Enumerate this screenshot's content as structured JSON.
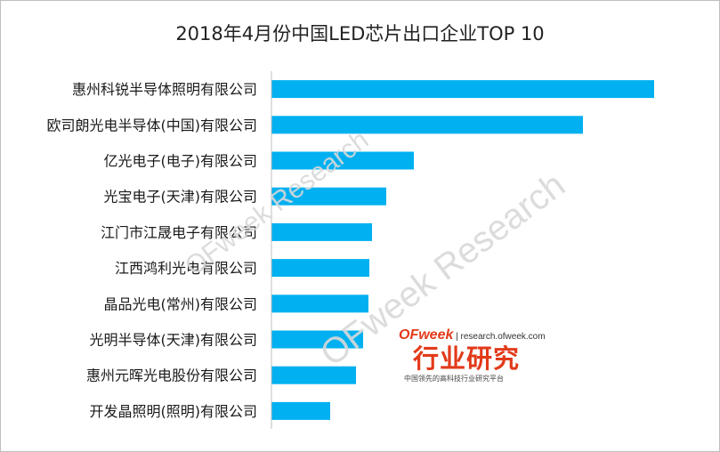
{
  "chart_data": {
    "type": "bar",
    "orientation": "horizontal",
    "title": "2018年4月份中国LED芯片出口企业TOP 10",
    "categories": [
      "惠州科锐半导体照明有限公司",
      "欧司朗光电半导体(中国)有限公司",
      "亿光电子(电子)有限公司",
      "光宝电子(天津)有限公司",
      "江门市江晟电子有限公司",
      "江西鸿利光电有限公司",
      "晶品光电(常州)有限公司",
      "光明半导体(天津)有限公司",
      "惠州元晖光电股份有限公司",
      "开发晶照明(照明)有限公司"
    ],
    "values": [
      430,
      350,
      160,
      129,
      113,
      110,
      109,
      103,
      95,
      66
    ],
    "xlim": [
      0,
      500
    ],
    "grid": false,
    "bar_color": "#00b0f0"
  },
  "watermark": {
    "text1": "OFweek Research",
    "text2": "OFweek Research"
  },
  "logo": {
    "brand_a": "OF",
    "brand_b": "week",
    "url": "research.ofweek.com",
    "main": "行业研究",
    "sub": "中国领先的高科技行业研究平台"
  }
}
